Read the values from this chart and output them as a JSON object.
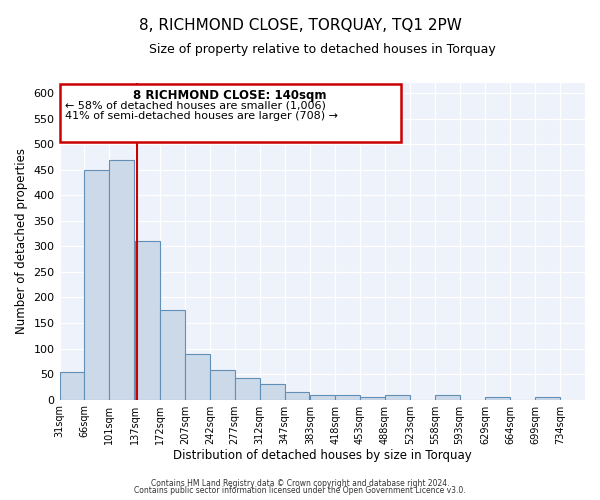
{
  "title": "8, RICHMOND CLOSE, TORQUAY, TQ1 2PW",
  "subtitle": "Size of property relative to detached houses in Torquay",
  "xlabel": "Distribution of detached houses by size in Torquay",
  "ylabel": "Number of detached properties",
  "bar_color": "#ccd9e8",
  "bar_edge_color": "#6090b8",
  "background_color": "#eef2fa",
  "grid_color": "#ffffff",
  "bin_labels": [
    "31sqm",
    "66sqm",
    "101sqm",
    "137sqm",
    "172sqm",
    "207sqm",
    "242sqm",
    "277sqm",
    "312sqm",
    "347sqm",
    "383sqm",
    "418sqm",
    "453sqm",
    "488sqm",
    "523sqm",
    "558sqm",
    "593sqm",
    "629sqm",
    "664sqm",
    "699sqm",
    "734sqm"
  ],
  "bar_heights": [
    55,
    450,
    470,
    310,
    175,
    90,
    58,
    42,
    30,
    15,
    8,
    8,
    5,
    8,
    0,
    8,
    0,
    5,
    0,
    5
  ],
  "bin_edges": [
    31,
    66,
    101,
    137,
    172,
    207,
    242,
    277,
    312,
    347,
    383,
    418,
    453,
    488,
    523,
    558,
    593,
    629,
    664,
    699,
    734
  ],
  "property_size": 140,
  "red_line_color": "#cc0000",
  "ylim": [
    0,
    620
  ],
  "yticks": [
    0,
    50,
    100,
    150,
    200,
    250,
    300,
    350,
    400,
    450,
    500,
    550,
    600
  ],
  "annotation_title": "8 RICHMOND CLOSE: 140sqm",
  "annotation_line1": "← 58% of detached houses are smaller (1,006)",
  "annotation_line2": "41% of semi-detached houses are larger (708) →",
  "footer_line1": "Contains HM Land Registry data © Crown copyright and database right 2024.",
  "footer_line2": "Contains public sector information licensed under the Open Government Licence v3.0."
}
